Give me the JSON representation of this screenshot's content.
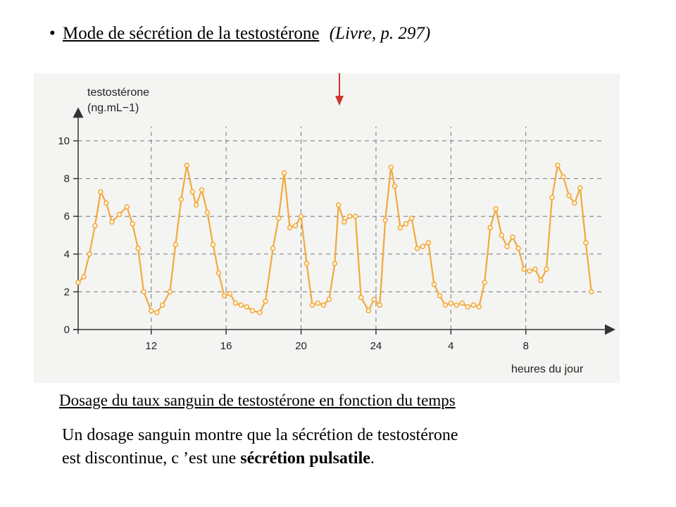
{
  "heading": {
    "bullet": "•",
    "title": "Mode de sécrétion de la testostérone",
    "reference": "(Livre, p. 297)"
  },
  "caption": "Dosage du taux sanguin de testostérone en fonction du temps",
  "paragraph": {
    "line1": "Un dosage sanguin montre que la sécrétion de testostérone",
    "line2_prefix": "est discontinue, c ’est une ",
    "line2_bold": "sécrétion pulsatile",
    "line2_suffix": "."
  },
  "chart_data": {
    "type": "line",
    "ylabel": "testostérone",
    "yunit": "(ng.mL−1)",
    "xlabel": "heures du jour",
    "x_ticks": [
      "12",
      "16",
      "20",
      "24",
      "4",
      "8"
    ],
    "x_tick_hours": [
      12,
      16,
      20,
      24,
      28,
      32
    ],
    "y_ticks": [
      0,
      2,
      4,
      6,
      8,
      10
    ],
    "ylim": [
      0,
      11.5
    ],
    "xlim": [
      8.1,
      36.5
    ],
    "grid": true,
    "colors": {
      "line": "#f2a93b",
      "marker_fill": "#fff6e0",
      "axis": "#333333",
      "grid": "#777777"
    },
    "x": [
      8.1,
      8.4,
      8.7,
      9.0,
      9.3,
      9.6,
      9.9,
      10.3,
      10.7,
      11.0,
      11.3,
      11.6,
      12.0,
      12.3,
      12.6,
      13.0,
      13.3,
      13.6,
      13.9,
      14.2,
      14.4,
      14.7,
      15.0,
      15.3,
      15.6,
      15.9,
      16.2,
      16.5,
      16.8,
      17.1,
      17.4,
      17.8,
      18.1,
      18.5,
      18.8,
      19.1,
      19.4,
      19.7,
      20.0,
      20.3,
      20.6,
      20.9,
      21.2,
      21.5,
      21.8,
      22.0,
      22.3,
      22.6,
      22.9,
      23.2,
      23.6,
      23.9,
      24.2,
      24.5,
      24.8,
      25.0,
      25.3,
      25.6,
      25.9,
      26.2,
      26.5,
      26.8,
      27.1,
      27.4,
      27.7,
      28.0,
      28.3,
      28.6,
      28.9,
      29.2,
      29.5,
      29.8,
      30.1,
      30.4,
      30.7,
      31.0,
      31.3,
      31.6,
      31.9,
      32.2,
      32.5,
      32.8,
      33.1,
      33.4,
      33.7,
      34.0,
      34.3,
      34.6,
      34.9,
      35.2,
      35.5
    ],
    "values": [
      2.5,
      2.8,
      4.0,
      5.5,
      7.3,
      6.7,
      5.7,
      6.1,
      6.5,
      5.6,
      4.3,
      2.0,
      1.0,
      0.9,
      1.3,
      2.0,
      4.5,
      6.9,
      8.7,
      7.3,
      6.6,
      7.4,
      6.2,
      4.5,
      3.0,
      1.8,
      1.9,
      1.4,
      1.3,
      1.2,
      1.0,
      0.9,
      1.5,
      4.3,
      5.9,
      8.3,
      5.4,
      5.5,
      6.0,
      3.5,
      1.3,
      1.4,
      1.3,
      1.6,
      3.5,
      6.6,
      5.7,
      6.0,
      6.0,
      1.7,
      1.0,
      1.6,
      1.3,
      5.8,
      8.6,
      7.6,
      5.4,
      5.6,
      5.9,
      4.3,
      4.4,
      4.6,
      2.4,
      1.8,
      1.3,
      1.4,
      1.3,
      1.4,
      1.2,
      1.3,
      1.2,
      2.5,
      5.4,
      6.4,
      5.0,
      4.4,
      4.9,
      4.3,
      3.2,
      3.1,
      3.2,
      2.6,
      3.2,
      7.0,
      8.7,
      8.1,
      7.1,
      6.7,
      7.5,
      4.6,
      2.0
    ]
  }
}
